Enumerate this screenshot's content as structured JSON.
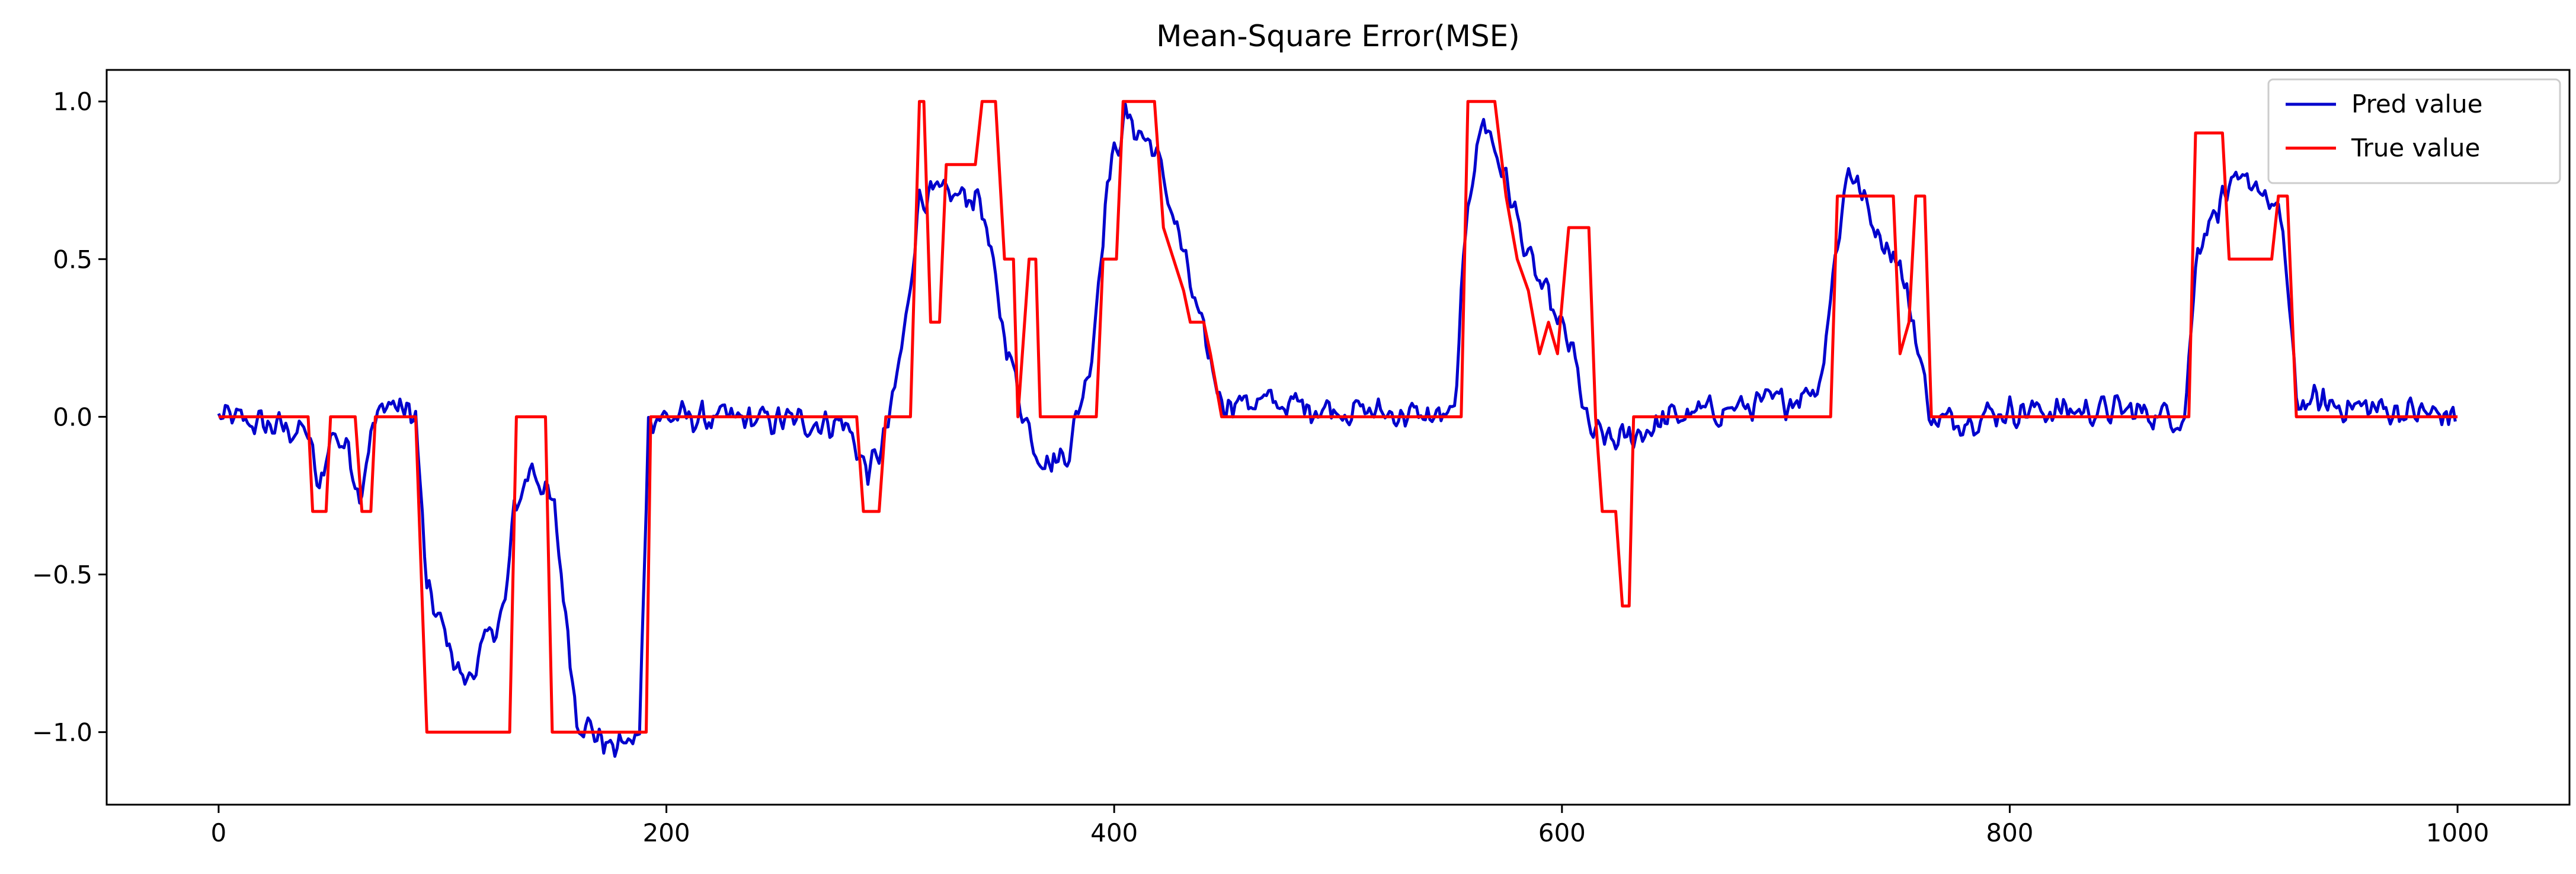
{
  "chart_data": {
    "type": "line",
    "title": "Mean-Square Error(MSE)",
    "xlabel": "",
    "ylabel": "",
    "xlim": [
      -50,
      1050
    ],
    "ylim": [
      -1.23,
      1.1
    ],
    "x_ticks": [
      0,
      200,
      400,
      600,
      800,
      1000
    ],
    "y_ticks": [
      1.0,
      0.5,
      0.0,
      -0.5,
      -1.0
    ],
    "x_tick_labels": [
      "0",
      "200",
      "400",
      "600",
      "800",
      "1000"
    ],
    "y_tick_labels": [
      "1.0",
      "0.5",
      "0.0",
      "−0.5",
      "−1.0"
    ],
    "grid": false,
    "legend": "top-right",
    "colors": {
      "pred": "#0000cc",
      "true": "#ff0000"
    },
    "series": [
      {
        "name": "True value",
        "color": "#ff0000",
        "points": [
          [
            0,
            0.0
          ],
          [
            40,
            0.0
          ],
          [
            42,
            -0.3
          ],
          [
            48,
            -0.3
          ],
          [
            50,
            0.0
          ],
          [
            61,
            0.0
          ],
          [
            64,
            -0.3
          ],
          [
            68,
            -0.3
          ],
          [
            70,
            0.0
          ],
          [
            88,
            0.0
          ],
          [
            93,
            -1.0
          ],
          [
            130,
            -1.0
          ],
          [
            133,
            0.0
          ],
          [
            146,
            0.0
          ],
          [
            149,
            -1.0
          ],
          [
            191,
            -1.0
          ],
          [
            193,
            0.0
          ],
          [
            285,
            0.0
          ],
          [
            288,
            -0.3
          ],
          [
            295,
            -0.3
          ],
          [
            298,
            0.0
          ],
          [
            309,
            0.0
          ],
          [
            313,
            1.0
          ],
          [
            315,
            1.0
          ],
          [
            318,
            0.3
          ],
          [
            322,
            0.3
          ],
          [
            325,
            0.8
          ],
          [
            338,
            0.8
          ],
          [
            341,
            1.0
          ],
          [
            347,
            1.0
          ],
          [
            351,
            0.5
          ],
          [
            355,
            0.5
          ],
          [
            357,
            0.0
          ],
          [
            362,
            0.5
          ],
          [
            365,
            0.5
          ],
          [
            367,
            0.0
          ],
          [
            392,
            0.0
          ],
          [
            395,
            0.5
          ],
          [
            401,
            0.5
          ],
          [
            404,
            1.0
          ],
          [
            418,
            1.0
          ],
          [
            422,
            0.6
          ],
          [
            431,
            0.4
          ],
          [
            434,
            0.3
          ],
          [
            440,
            0.3
          ],
          [
            443,
            0.2
          ],
          [
            448,
            0.0
          ],
          [
            555,
            0.0
          ],
          [
            558,
            1.0
          ],
          [
            570,
            1.0
          ],
          [
            575,
            0.7
          ],
          [
            580,
            0.5
          ],
          [
            585,
            0.4
          ],
          [
            590,
            0.2
          ],
          [
            594,
            0.3
          ],
          [
            598,
            0.2
          ],
          [
            603,
            0.6
          ],
          [
            612,
            0.6
          ],
          [
            615,
            0.0
          ],
          [
            618,
            -0.3
          ],
          [
            624,
            -0.3
          ],
          [
            627,
            -0.6
          ],
          [
            630,
            -0.6
          ],
          [
            632,
            0.0
          ],
          [
            720,
            0.0
          ],
          [
            723,
            0.7
          ],
          [
            748,
            0.7
          ],
          [
            751,
            0.2
          ],
          [
            755,
            0.3
          ],
          [
            758,
            0.7
          ],
          [
            762,
            0.7
          ],
          [
            765,
            0.0
          ],
          [
            880,
            0.0
          ],
          [
            883,
            0.9
          ],
          [
            895,
            0.9
          ],
          [
            898,
            0.5
          ],
          [
            917,
            0.5
          ],
          [
            920,
            0.7
          ],
          [
            924,
            0.7
          ],
          [
            928,
            0.0
          ],
          [
            1000,
            0.0
          ]
        ]
      },
      {
        "name": "Pred value",
        "color": "#0000cc",
        "anchors": [
          [
            0,
            0.0
          ],
          [
            40,
            -0.05
          ],
          [
            45,
            -0.25
          ],
          [
            50,
            -0.05
          ],
          [
            58,
            -0.1
          ],
          [
            63,
            -0.25
          ],
          [
            68,
            -0.05
          ],
          [
            75,
            0.05
          ],
          [
            88,
            0.0
          ],
          [
            93,
            -0.55
          ],
          [
            110,
            -0.85
          ],
          [
            128,
            -0.6
          ],
          [
            132,
            -0.3
          ],
          [
            140,
            -0.15
          ],
          [
            150,
            -0.3
          ],
          [
            160,
            -0.95
          ],
          [
            175,
            -1.05
          ],
          [
            188,
            -1.02
          ],
          [
            192,
            0.0
          ],
          [
            280,
            -0.02
          ],
          [
            290,
            -0.18
          ],
          [
            296,
            -0.1
          ],
          [
            300,
            0.0
          ],
          [
            307,
            0.3
          ],
          [
            313,
            0.7
          ],
          [
            320,
            0.7
          ],
          [
            340,
            0.7
          ],
          [
            350,
            0.3
          ],
          [
            358,
            0.05
          ],
          [
            365,
            -0.1
          ],
          [
            372,
            -0.15
          ],
          [
            380,
            -0.1
          ],
          [
            390,
            0.2
          ],
          [
            397,
            0.75
          ],
          [
            405,
            0.95
          ],
          [
            418,
            0.85
          ],
          [
            428,
            0.6
          ],
          [
            438,
            0.3
          ],
          [
            448,
            0.05
          ],
          [
            460,
            0.05
          ],
          [
            540,
            0.0
          ],
          [
            552,
            0.0
          ],
          [
            558,
            0.7
          ],
          [
            565,
            0.95
          ],
          [
            575,
            0.75
          ],
          [
            585,
            0.5
          ],
          [
            595,
            0.35
          ],
          [
            605,
            0.2
          ],
          [
            612,
            -0.05
          ],
          [
            625,
            -0.08
          ],
          [
            635,
            -0.05
          ],
          [
            650,
            0.0
          ],
          [
            700,
            0.05
          ],
          [
            715,
            0.1
          ],
          [
            722,
            0.5
          ],
          [
            728,
            0.8
          ],
          [
            740,
            0.6
          ],
          [
            750,
            0.5
          ],
          [
            757,
            0.3
          ],
          [
            762,
            0.1
          ],
          [
            766,
            -0.02
          ],
          [
            800,
            0.02
          ],
          [
            850,
            0.02
          ],
          [
            878,
            0.0
          ],
          [
            884,
            0.55
          ],
          [
            895,
            0.7
          ],
          [
            910,
            0.75
          ],
          [
            922,
            0.6
          ],
          [
            928,
            0.05
          ],
          [
            1000,
            0.0
          ]
        ],
        "noise_amplitude": 0.06,
        "n_points": 1000
      }
    ]
  }
}
